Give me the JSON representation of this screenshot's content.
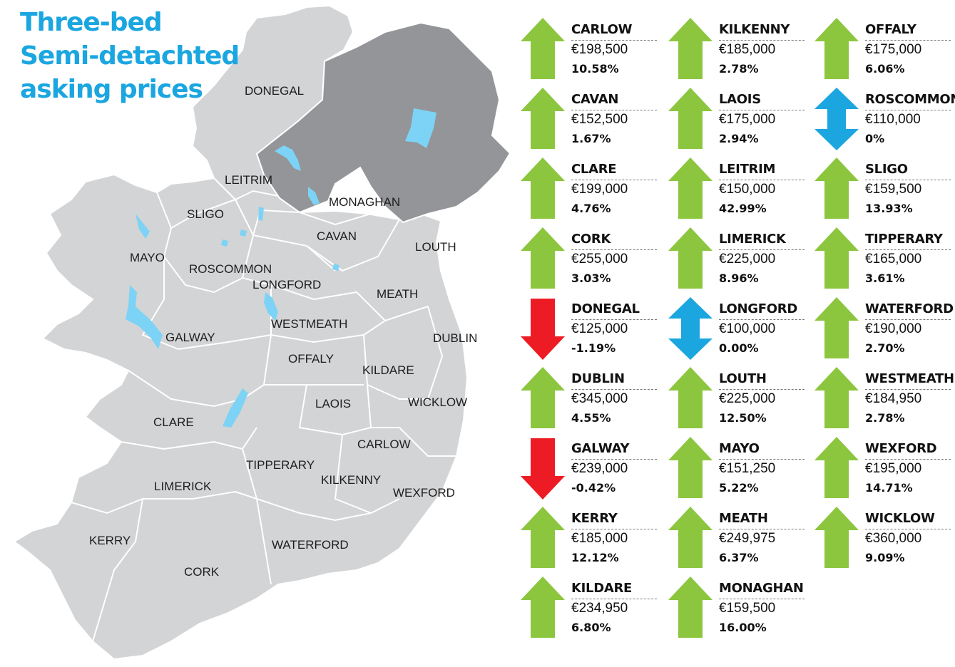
{
  "title": [
    "Three-bed",
    "Semi-detachted",
    "asking prices"
  ],
  "colors": {
    "title": "#1ba6e0",
    "up": "#8cc63f",
    "down": "#ed1c24",
    "unchanged": "#1ba6e0",
    "republic_fill": "#d3d4d6",
    "northern_ireland_fill": "#939598",
    "lakes": "#7dd3f5",
    "border": "#ffffff"
  },
  "map_labels": [
    "DONEGAL",
    "LEITRIM",
    "MONAGHAN",
    "SLIGO",
    "CAVAN",
    "LOUTH",
    "MAYO",
    "ROSCOMMON",
    "LONGFORD",
    "MEATH",
    "WESTMEATH",
    "GALWAY",
    "DUBLIN",
    "OFFALY",
    "KILDARE",
    "LAOIS",
    "WICKLOW",
    "CLARE",
    "CARLOW",
    "TIPPERARY",
    "KILKENNY",
    "LIMERICK",
    "WEXFORD",
    "KERRY",
    "WATERFORD",
    "CORK"
  ],
  "counties": [
    {
      "name": "CARLOW",
      "price": "€198,500",
      "change": "10.58%",
      "direction": "up",
      "arrow_icon": "up-arrow-icon"
    },
    {
      "name": "KILKENNY",
      "price": "€185,000",
      "change": "2.78%",
      "direction": "up",
      "arrow_icon": "up-arrow-icon"
    },
    {
      "name": "OFFALY",
      "price": "€175,000",
      "change": "6.06%",
      "direction": "up",
      "arrow_icon": "up-arrow-icon"
    },
    {
      "name": "CAVAN",
      "price": "€152,500",
      "change": "1.67%",
      "direction": "up",
      "arrow_icon": "up-arrow-icon"
    },
    {
      "name": "LAOIS",
      "price": "€175,000",
      "change": "2.94%",
      "direction": "up",
      "arrow_icon": "up-arrow-icon"
    },
    {
      "name": "ROSCOMMON",
      "price": "€110,000",
      "change": "0%",
      "direction": "unchanged",
      "arrow_icon": "double-arrow-icon"
    },
    {
      "name": "CLARE",
      "price": "€199,000",
      "change": "4.76%",
      "direction": "up",
      "arrow_icon": "up-arrow-icon"
    },
    {
      "name": "LEITRIM",
      "price": "€150,000",
      "change": "42.99%",
      "direction": "up",
      "arrow_icon": "up-arrow-icon"
    },
    {
      "name": "SLIGO",
      "price": "€159,500",
      "change": "13.93%",
      "direction": "up",
      "arrow_icon": "up-arrow-icon"
    },
    {
      "name": "CORK",
      "price": "€255,000",
      "change": "3.03%",
      "direction": "up",
      "arrow_icon": "up-arrow-icon"
    },
    {
      "name": "LIMERICK",
      "price": "€225,000",
      "change": "8.96%",
      "direction": "up",
      "arrow_icon": "up-arrow-icon"
    },
    {
      "name": "TIPPERARY",
      "price": "€165,000",
      "change": "3.61%",
      "direction": "up",
      "arrow_icon": "up-arrow-icon"
    },
    {
      "name": "DONEGAL",
      "price": "€125,000",
      "change": "-1.19%",
      "direction": "down",
      "arrow_icon": "down-arrow-icon"
    },
    {
      "name": "LONGFORD",
      "price": "€100,000",
      "change": "0.00%",
      "direction": "unchanged",
      "arrow_icon": "double-arrow-icon"
    },
    {
      "name": "WATERFORD",
      "price": "€190,000",
      "change": "2.70%",
      "direction": "up",
      "arrow_icon": "up-arrow-icon"
    },
    {
      "name": "DUBLIN",
      "price": "€345,000",
      "change": "4.55%",
      "direction": "up",
      "arrow_icon": "up-arrow-icon"
    },
    {
      "name": "LOUTH",
      "price": "€225,000",
      "change": "12.50%",
      "direction": "up",
      "arrow_icon": "up-arrow-icon"
    },
    {
      "name": "WESTMEATH",
      "price": "€184,950",
      "change": "2.78%",
      "direction": "up",
      "arrow_icon": "up-arrow-icon"
    },
    {
      "name": "GALWAY",
      "price": "€239,000",
      "change": "-0.42%",
      "direction": "down",
      "arrow_icon": "down-arrow-icon"
    },
    {
      "name": "MAYO",
      "price": "€151,250",
      "change": "5.22%",
      "direction": "up",
      "arrow_icon": "up-arrow-icon"
    },
    {
      "name": "WEXFORD",
      "price": "€195,000",
      "change": "14.71%",
      "direction": "up",
      "arrow_icon": "up-arrow-icon"
    },
    {
      "name": "KERRY",
      "price": "€185,000",
      "change": "12.12%",
      "direction": "up",
      "arrow_icon": "up-arrow-icon"
    },
    {
      "name": "MEATH",
      "price": "€249,975",
      "change": "6.37%",
      "direction": "up",
      "arrow_icon": "up-arrow-icon"
    },
    {
      "name": "WICKLOW",
      "price": "€360,000",
      "change": "9.09%",
      "direction": "up",
      "arrow_icon": "up-arrow-icon"
    },
    {
      "name": "KILDARE",
      "price": "€234,950",
      "change": "6.80%",
      "direction": "up",
      "arrow_icon": "up-arrow-icon"
    },
    {
      "name": "MONAGHAN",
      "price": "€159,500",
      "change": "16.00%",
      "direction": "up",
      "arrow_icon": "up-arrow-icon"
    }
  ]
}
